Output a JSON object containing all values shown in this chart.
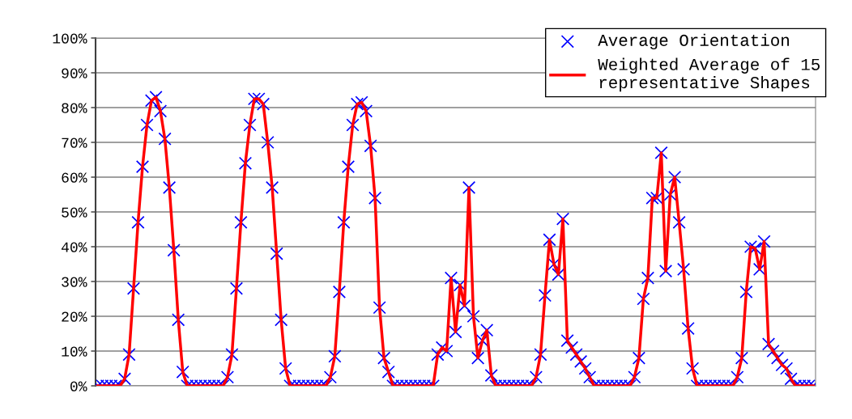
{
  "chart_data": {
    "type": "line",
    "categories": [
      null,
      null,
      null,
      null,
      null,
      null,
      null,
      null,
      null,
      null,
      null,
      null,
      null,
      null,
      null,
      null,
      null,
      null,
      null,
      null,
      null,
      null,
      null,
      null,
      null,
      null,
      null,
      null,
      null,
      null,
      null,
      null,
      null,
      null,
      null,
      null,
      null,
      null,
      null,
      null,
      null,
      null,
      null,
      null,
      null,
      null,
      null,
      null,
      null,
      null,
      null,
      null,
      null,
      null,
      null,
      null,
      null,
      null,
      null,
      null,
      null,
      null,
      null,
      null,
      null,
      null,
      null,
      null,
      null,
      null,
      null,
      null,
      null,
      null,
      null,
      null,
      null,
      null,
      null,
      null,
      null,
      null,
      null,
      null,
      null,
      null,
      null,
      null,
      null,
      null,
      null,
      null,
      null,
      null,
      null,
      null,
      null,
      null,
      null,
      null,
      null,
      null,
      null,
      null,
      null,
      null,
      null,
      null,
      null,
      null,
      null,
      null,
      null,
      null,
      null,
      null,
      null,
      null,
      null,
      null,
      null,
      null,
      null,
      null,
      null,
      null,
      null,
      null,
      null,
      null,
      null,
      null,
      null,
      null,
      null,
      null,
      null,
      null,
      null,
      null,
      null,
      null,
      null,
      null,
      null,
      null,
      null,
      null,
      null,
      null,
      null,
      null,
      null,
      null,
      null,
      null,
      null,
      null,
      null,
      null,
      null
    ],
    "series": [
      {
        "name": "Average Orientation",
        "type": "scatter",
        "color": "#0000ff",
        "marker": "cross",
        "values": [
          0,
          0,
          0,
          0,
          0,
          0,
          2,
          9,
          28,
          47,
          63,
          75,
          82,
          83,
          79,
          71,
          57,
          39,
          19,
          4,
          0,
          0,
          0,
          0,
          0,
          0,
          0,
          0,
          0,
          2.5,
          9,
          28,
          47,
          64,
          75,
          82.5,
          82.5,
          81,
          70,
          57,
          38,
          19,
          5,
          0,
          0,
          0,
          0,
          0,
          0,
          0,
          0,
          0,
          2.5,
          8.5,
          27,
          47,
          63,
          75,
          81,
          81.5,
          79,
          69,
          54,
          22.5,
          8,
          4,
          0,
          0,
          0,
          0,
          0,
          0,
          0,
          0,
          0,
          0,
          9,
          11,
          10,
          31,
          15.5,
          29,
          23,
          57,
          20,
          8,
          13,
          16,
          3,
          0,
          0,
          0,
          0,
          0,
          0,
          0,
          0,
          0,
          2.5,
          9,
          26,
          42,
          35,
          32,
          48,
          13,
          11,
          9,
          7,
          5,
          2.5,
          0,
          0,
          0,
          0,
          0,
          0,
          0,
          0,
          0,
          2.5,
          8,
          25,
          31,
          54,
          54,
          67,
          33,
          55,
          60,
          47,
          33.5,
          16.5,
          5,
          0,
          0,
          0,
          0,
          0,
          0,
          0,
          0,
          0,
          2.5,
          8,
          27,
          40,
          39.5,
          33.5,
          41.5,
          12,
          10,
          8,
          6,
          5,
          2,
          0,
          0,
          0,
          0,
          0
        ]
      },
      {
        "name": "Weighted Average of 15\nrepresentative Shapes",
        "color": "#ff0000",
        "values": [
          0,
          0,
          0,
          0,
          0,
          0,
          2,
          9,
          28,
          47,
          63,
          75,
          82,
          83,
          79,
          71,
          57,
          39,
          19,
          4,
          0,
          0,
          0,
          0,
          0,
          0,
          0,
          0,
          0,
          2.5,
          9,
          28,
          47,
          64,
          75,
          82.5,
          82.5,
          81,
          70,
          57,
          38,
          19,
          5,
          0,
          0,
          0,
          0,
          0,
          0,
          0,
          0,
          0,
          2.5,
          8.5,
          27,
          47,
          63,
          75,
          81,
          81.5,
          79,
          69,
          54,
          22.5,
          8,
          4,
          0,
          0,
          0,
          0,
          0,
          0,
          0,
          0,
          0,
          0,
          9,
          11,
          10,
          31,
          15.5,
          29,
          23,
          57,
          20,
          8,
          13,
          16,
          3,
          0,
          0,
          0,
          0,
          0,
          0,
          0,
          0,
          0,
          2.5,
          9,
          26,
          42,
          35,
          32,
          48,
          13,
          11,
          9,
          7,
          5,
          2.5,
          0,
          0,
          0,
          0,
          0,
          0,
          0,
          0,
          0,
          2.5,
          8,
          25,
          31,
          54,
          54,
          67,
          33,
          55,
          60,
          47,
          33.5,
          16.5,
          5,
          0,
          0,
          0,
          0,
          0,
          0,
          0,
          0,
          0,
          2.5,
          8,
          27,
          40,
          39.5,
          33.5,
          41.5,
          12,
          10,
          8,
          6,
          5,
          2,
          0,
          0,
          0,
          0,
          0
        ]
      }
    ],
    "ylim": [
      0,
      100
    ],
    "yticks": [
      {
        "value": 0,
        "label": "0%"
      },
      {
        "value": 10,
        "label": "10%"
      },
      {
        "value": 20,
        "label": "20%"
      },
      {
        "value": 30,
        "label": "30%"
      },
      {
        "value": 40,
        "label": "40%"
      },
      {
        "value": 50,
        "label": "50%"
      },
      {
        "value": 60,
        "label": "60%"
      },
      {
        "value": 70,
        "label": "70%"
      },
      {
        "value": 80,
        "label": "80%"
      },
      {
        "value": 90,
        "label": "90%"
      },
      {
        "value": 100,
        "label": "100%"
      }
    ],
    "tick_labels": "y",
    "grid": "y",
    "legend": "top right"
  }
}
